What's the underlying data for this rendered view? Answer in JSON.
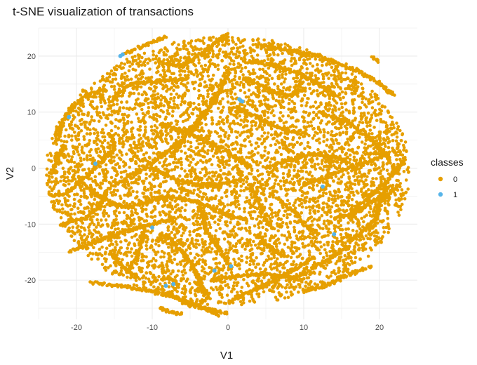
{
  "chart_data": {
    "type": "scatter",
    "title": "t-SNE visualization of transactions",
    "xlabel": "V1",
    "ylabel": "V2",
    "xlim": [
      -25,
      25
    ],
    "ylim": [
      -27,
      25
    ],
    "x_ticks": [
      -20,
      -10,
      0,
      10,
      20
    ],
    "y_ticks": [
      -20,
      -10,
      0,
      10,
      20
    ],
    "grid": true,
    "legend": {
      "title": "classes",
      "position": "right"
    },
    "series": [
      {
        "name": "0",
        "color": "#E69F00",
        "cloud": {
          "center": [
            0,
            -0.5
          ],
          "radius_x": 24,
          "radius_y": 24,
          "approx_points": 6000
        },
        "strands": [
          {
            "x": [
              -23.5,
              -21.5,
              -19,
              -16.5,
              -15,
              -15.5
            ],
            "y": [
              -5,
              -4.5,
              -2,
              1.5,
              4,
              6
            ]
          },
          {
            "x": [
              -22.5,
              -22,
              -20.5,
              -18.5,
              -16
            ],
            "y": [
              5,
              8,
              11,
              13,
              14
            ]
          },
          {
            "x": [
              -18,
              -14,
              -10,
              -6,
              -3,
              -1
            ],
            "y": [
              -20.5,
              -21,
              -22,
              -23.5,
              -25,
              -26.5
            ]
          },
          {
            "x": [
              -15.5,
              -14,
              -13,
              -12
            ],
            "y": [
              -15,
              -17.5,
              -18.5,
              -19.5
            ]
          },
          {
            "x": [
              -21,
              -17,
              -13,
              -10,
              -7
            ],
            "y": [
              -15,
              -13,
              -11,
              -10,
              -9
            ]
          },
          {
            "x": [
              -15,
              -12,
              -9,
              -6
            ],
            "y": [
              -3,
              -1,
              2,
              5
            ]
          },
          {
            "x": [
              -9.5,
              -8,
              -6,
              -5,
              -3.5
            ],
            "y": [
              -13,
              -12,
              -15,
              -17,
              -20
            ]
          },
          {
            "x": [
              -13,
              -8,
              -4,
              -1,
              2
            ],
            "y": [
              -7,
              -5,
              -6,
              -8,
              -9
            ]
          },
          {
            "x": [
              -3.5,
              -3,
              -1,
              0.5
            ],
            "y": [
              -7,
              -11,
              -15,
              -18
            ]
          },
          {
            "x": [
              -9,
              -6,
              -2,
              0
            ],
            "y": [
              19,
              18,
              22,
              24
            ]
          },
          {
            "x": [
              -13.5,
              -11,
              -8
            ],
            "y": [
              20.5,
              22,
              23.5
            ]
          },
          {
            "x": [
              -5,
              -3,
              -1,
              0
            ],
            "y": [
              6,
              10,
              14,
              17
            ]
          },
          {
            "x": [
              -15,
              -13,
              -9,
              -5
            ],
            "y": [
              12.5,
              15,
              15.5,
              16
            ]
          },
          {
            "x": [
              2,
              4,
              6,
              8,
              10
            ],
            "y": [
              16,
              15,
              13.5,
              13,
              14
            ]
          },
          {
            "x": [
              1,
              4,
              7,
              10
            ],
            "y": [
              11,
              9,
              7,
              6
            ]
          },
          {
            "x": [
              3,
              6,
              9,
              12,
              14
            ],
            "y": [
              19,
              18.5,
              17,
              15,
              13
            ]
          },
          {
            "x": [
              4,
              8,
              12,
              16,
              19,
              22
            ],
            "y": [
              22,
              21,
              20,
              18,
              16,
              13
            ]
          },
          {
            "x": [
              12,
              16,
              19,
              21,
              22.5
            ],
            "y": [
              10,
              8,
              5,
              2,
              -1
            ]
          },
          {
            "x": [
              10,
              13,
              16,
              19,
              21
            ],
            "y": [
              -3,
              -1.5,
              0,
              1.5,
              2.5
            ]
          },
          {
            "x": [
              5,
              8,
              11,
              14,
              16
            ],
            "y": [
              0,
              1.5,
              2.5,
              2,
              1
            ]
          },
          {
            "x": [
              16,
              18,
              20,
              22,
              23.5
            ],
            "y": [
              -8,
              -6,
              -3.5,
              -1,
              2
            ]
          },
          {
            "x": [
              16,
              18,
              19.5,
              20,
              21
            ],
            "y": [
              -13,
              -11,
              -9,
              -6,
              -3
            ]
          },
          {
            "x": [
              14,
              17,
              19,
              21,
              22.5
            ],
            "y": [
              -9,
              -8,
              -6,
              -5,
              -3
            ]
          },
          {
            "x": [
              10,
              13,
              16,
              19
            ],
            "y": [
              -22,
              -21,
              -19,
              -17.5
            ]
          },
          {
            "x": [
              8,
              11,
              13.5,
              16
            ],
            "y": [
              -20,
              -18,
              -16,
              -14
            ]
          },
          {
            "x": [
              0,
              3,
              6,
              9,
              11
            ],
            "y": [
              -24,
              -22,
              -20,
              -18,
              -16
            ]
          },
          {
            "x": [
              4,
              5,
              6.5,
              8
            ],
            "y": [
              -12,
              -13.5,
              -15,
              -16
            ]
          },
          {
            "x": [
              -2,
              0,
              3,
              6,
              10
            ],
            "y": [
              -20,
              -19.5,
              -19,
              -19,
              -20
            ]
          },
          {
            "x": [
              -4.5,
              -3.5,
              -2.5
            ],
            "y": [
              -18,
              -21,
              -23.5
            ]
          },
          {
            "x": [
              -8.5,
              -7,
              -6.5
            ],
            "y": [
              -19.5,
              -20,
              -21
            ]
          },
          {
            "x": [
              -11,
              -11.5,
              -12,
              -13
            ],
            "y": [
              -11,
              -13.5,
              -16,
              -18
            ]
          },
          {
            "x": [
              -9,
              -5,
              0,
              3
            ],
            "y": [
              8,
              6,
              3,
              0
            ]
          },
          {
            "x": [
              -10,
              -7,
              -4,
              -1,
              2
            ],
            "y": [
              0,
              -2,
              -3,
              -3,
              -2
            ]
          },
          {
            "x": [
              -22,
              -19,
              -17,
              -16
            ],
            "y": [
              -10,
              -9,
              -7,
              -4
            ]
          },
          {
            "x": [
              -19,
              -17,
              -15,
              -13
            ],
            "y": [
              -3,
              -5,
              -6.5,
              -7
            ]
          },
          {
            "x": [
              -23,
              -22.5,
              -21.5
            ],
            "y": [
              -1,
              2,
              4
            ]
          },
          {
            "x": [
              -7,
              -5,
              -3
            ],
            "y": [
              3,
              7,
              10
            ]
          },
          {
            "x": [
              3,
              4,
              5,
              6
            ],
            "y": [
              -3,
              -6,
              -9,
              -11
            ]
          },
          {
            "x": [
              7,
              9,
              10,
              12
            ],
            "y": [
              -6,
              -8,
              -10,
              -12
            ]
          },
          {
            "x": [
              -9,
              -8,
              -6
            ],
            "y": [
              -25,
              -25.5,
              -26
            ]
          },
          {
            "x": [
              -6,
              -3,
              0
            ],
            "y": [
              -24,
              -25,
              -26
            ]
          },
          {
            "x": [
              19,
              19.5,
              20
            ],
            "y": [
              20,
              19.5,
              19
            ]
          }
        ]
      },
      {
        "name": "1",
        "color": "#56B4E9",
        "x": [
          -14.2,
          -13.9,
          -21,
          -17.5,
          1.5,
          1.7,
          1.9,
          -10,
          12.5,
          14,
          -7.2,
          -1.8,
          0.4,
          -8.2
        ],
        "y": [
          20,
          20.3,
          9.1,
          0.8,
          12.3,
          12.0,
          11.9,
          -10.6,
          -3.3,
          -11.8,
          -20.7,
          -18.3,
          -17.5,
          -21.0
        ]
      }
    ]
  }
}
